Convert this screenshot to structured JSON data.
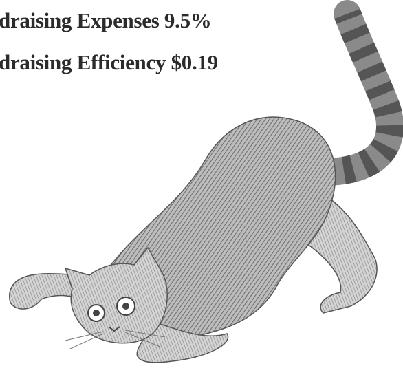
{
  "lines": [
    "draising Expenses 9.5%",
    "draising Efficiency $0.19"
  ]
}
